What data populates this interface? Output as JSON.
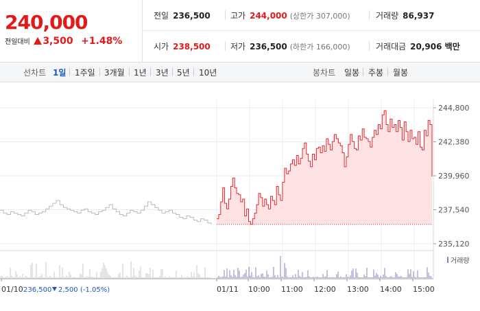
{
  "quote": {
    "price": "240,000",
    "prev_label": "전일대비",
    "change": "3,500",
    "change_pct": "+1.48%"
  },
  "info": {
    "prev_close": {
      "label": "전일",
      "value": "236,500"
    },
    "high": {
      "label": "고가",
      "value": "244,000",
      "sub": "(상한가 307,000)"
    },
    "volume": {
      "label": "거래량",
      "value": "86,937"
    },
    "open": {
      "label": "시가",
      "value": "238,500"
    },
    "low": {
      "label": "저가",
      "value": "236,500",
      "sub": "(하한가 166,000)"
    },
    "amount": {
      "label": "거래대금",
      "value": "20,906 백만"
    }
  },
  "toolbar": {
    "line_label": "선차트",
    "line_periods": [
      "1일",
      "1주일",
      "3개월",
      "1년",
      "3년",
      "5년",
      "10년"
    ],
    "selected": "1일",
    "candle_label": "봉차트",
    "candle_periods": [
      "일봉",
      "주봉",
      "월봉"
    ]
  },
  "chart_data": {
    "type": "line",
    "y_ticks": [
      244800,
      242380,
      239960,
      237540,
      235120
    ],
    "y_tick_labels": [
      "244,800",
      "242,380",
      "239,960",
      "237,540",
      "235,120"
    ],
    "ylim": [
      235120,
      244800
    ],
    "x_ticks": [
      "01/10",
      "01/11",
      "10:00",
      "11:00",
      "12:00",
      "13:00",
      "14:00",
      "15:00"
    ],
    "prev_day": {
      "date": "01/10",
      "close": "236,500",
      "change": "2,500",
      "change_pct": "(-1.05%)",
      "values": [
        237500,
        237300,
        237200,
        237400,
        237300,
        237200,
        237100,
        237300,
        237500,
        237400,
        237200,
        237300,
        237400,
        237600,
        237800,
        238000,
        238200,
        237900,
        237700,
        237600,
        237500,
        237400,
        237300,
        237500,
        237600,
        237400,
        237300,
        237200,
        237400,
        237500,
        237700,
        237900,
        237600,
        237400,
        237200,
        237100,
        237300,
        237500,
        237400,
        237300,
        237500,
        237800,
        238100,
        237900,
        237700,
        237500,
        237300,
        237400,
        237500,
        237300,
        237200,
        237000,
        236900,
        237100,
        237000,
        236800,
        236700,
        236900,
        236800,
        236600,
        236500
      ]
    },
    "today": {
      "date": "01/11",
      "base": 236500,
      "series": [
        {
          "name": "intraday",
          "color": "#e8262b",
          "values": [
            236900,
            237200,
            238100,
            239100,
            238000,
            237600,
            238300,
            239200,
            239800,
            239100,
            238700,
            238600,
            238100,
            238300,
            237100,
            237600,
            236700,
            236500,
            236900,
            237300,
            237900,
            238700,
            238400,
            237800,
            238300,
            237900,
            237600,
            238500,
            238200,
            237900,
            239200,
            238600,
            238200,
            239500,
            240500,
            240100,
            240300,
            240800,
            241100,
            240700,
            241400,
            240800,
            241200,
            241900,
            242300,
            241500,
            241000,
            240600,
            241500,
            241100,
            241900,
            242000,
            241600,
            242100,
            241700,
            242600,
            242200,
            241800,
            242400,
            242900,
            242600,
            242300,
            242100,
            241600,
            240600,
            241300,
            242200,
            242900,
            242400,
            241900,
            241800,
            242800,
            242500,
            243300,
            242700,
            242600,
            242400,
            242000,
            242700,
            243200,
            242900,
            243600,
            243300,
            244300,
            244600,
            243600,
            243100,
            244000,
            243400,
            243600,
            243100,
            243900,
            243400,
            242500,
            243800,
            243100,
            242400,
            243200,
            242600,
            242700,
            242200,
            243100,
            242000,
            241800,
            243200,
            242800,
            243900,
            243600,
            239900
          ]
        }
      ]
    },
    "volume_label": "거래량",
    "volume_color": "#8f7fbd"
  }
}
